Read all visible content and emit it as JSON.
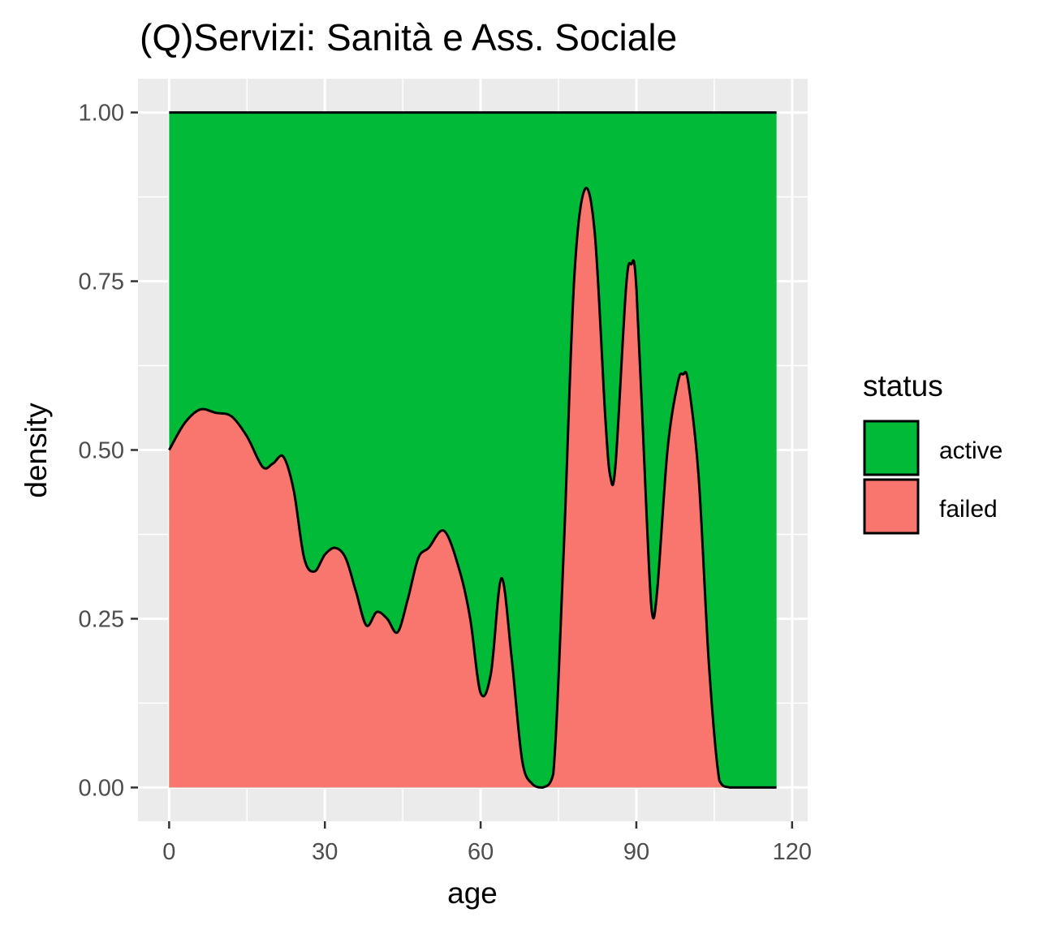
{
  "chart_data": {
    "type": "area",
    "title": "(Q)Servizi: Sanità e Ass. Sociale",
    "xlabel": "age",
    "ylabel": "density",
    "xlim": [
      -6,
      123
    ],
    "ylim": [
      -0.05,
      1.05
    ],
    "x_ticks": [
      0,
      30,
      60,
      90,
      120
    ],
    "x_tick_labels": [
      "0",
      "30",
      "60",
      "90",
      "120"
    ],
    "y_ticks": [
      0,
      0.25,
      0.5,
      0.75,
      1.0
    ],
    "y_tick_labels": [
      "0.00",
      "0.25",
      "0.50",
      "0.75",
      "1.00"
    ],
    "grid": true,
    "legend_title": "status",
    "legend_position": "right",
    "series": [
      {
        "name": "active",
        "color": "#00BA38",
        "fill_to": 1.0
      },
      {
        "name": "failed",
        "color": "#F8766D"
      }
    ],
    "boundary": {
      "x": [
        0,
        3,
        6,
        9,
        12,
        15,
        18,
        20,
        22,
        24,
        26,
        28,
        30,
        32,
        34,
        36,
        38,
        40,
        42,
        44,
        46,
        48,
        50,
        53,
        56,
        58,
        60,
        62,
        64,
        66,
        68,
        70,
        72,
        74,
        76,
        78,
        80,
        82,
        84,
        85,
        86,
        88,
        89,
        90,
        92,
        93,
        94,
        96,
        98,
        99,
        100,
        102,
        104,
        106,
        108,
        112,
        117
      ],
      "y": [
        0.5,
        0.54,
        0.56,
        0.555,
        0.55,
        0.52,
        0.475,
        0.48,
        0.49,
        0.44,
        0.34,
        0.32,
        0.345,
        0.355,
        0.34,
        0.29,
        0.24,
        0.26,
        0.25,
        0.23,
        0.28,
        0.34,
        0.355,
        0.38,
        0.32,
        0.25,
        0.14,
        0.17,
        0.31,
        0.19,
        0.04,
        0.005,
        0.0,
        0.02,
        0.35,
        0.75,
        0.885,
        0.82,
        0.55,
        0.46,
        0.48,
        0.74,
        0.775,
        0.74,
        0.4,
        0.26,
        0.29,
        0.5,
        0.6,
        0.612,
        0.6,
        0.46,
        0.18,
        0.01,
        0.0,
        0.0,
        0.0
      ]
    }
  }
}
